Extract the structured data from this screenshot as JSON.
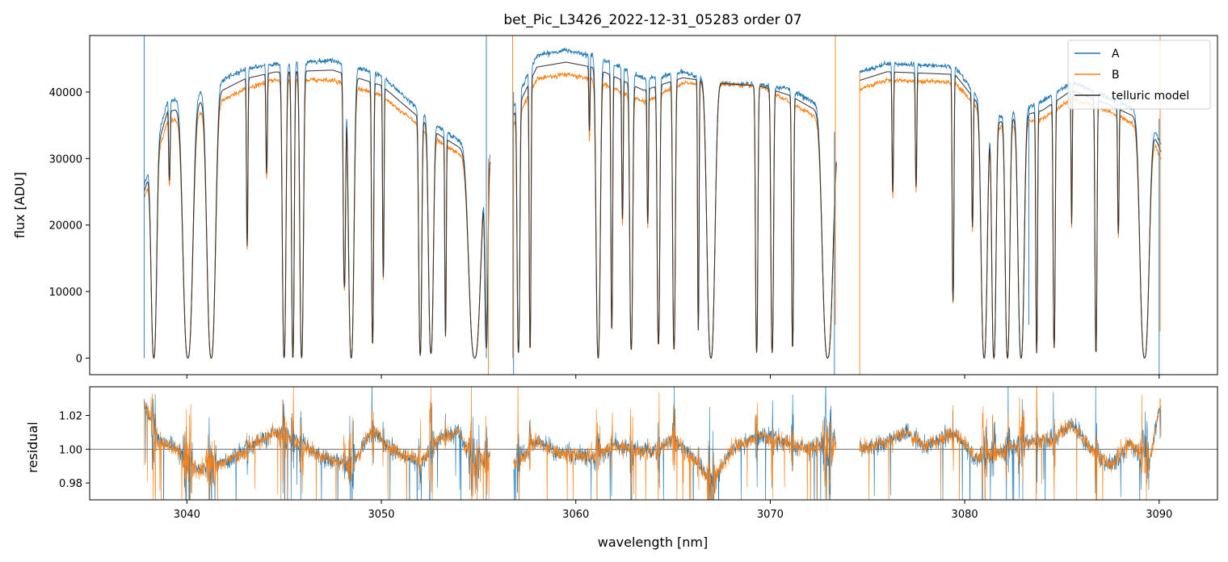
{
  "chart_data": [
    {
      "type": "line",
      "panel": "top",
      "title": "bet_Pic_L3426_2022-12-31_05283  order 07",
      "xlabel": "",
      "ylabel": "flux [ADU]",
      "xlim": [
        3035,
        3093
      ],
      "ylim": [
        -2500,
        48500
      ],
      "yticks": [
        0,
        10000,
        20000,
        30000,
        40000
      ],
      "ytick_labels": [
        "0",
        "10000",
        "20000",
        "30000",
        "40000"
      ],
      "xticks": [
        3040,
        3050,
        3060,
        3070,
        3080,
        3090
      ],
      "legend": {
        "location": "upper right",
        "entries": [
          "A",
          "B",
          "telluric model"
        ]
      },
      "segments": [
        [
          3037.8,
          3055.6
        ],
        [
          3056.8,
          3073.4
        ],
        [
          3074.6,
          3090.1
        ]
      ],
      "series": [
        {
          "name": "A",
          "color": "#1f77b4",
          "continuum": [
            [
              3037.8,
              26000
            ],
            [
              3039,
              38500
            ],
            [
              3040.5,
              39800
            ],
            [
              3043,
              43500
            ],
            [
              3044.5,
              44200
            ],
            [
              3047.5,
              44800
            ],
            [
              3050,
              42500
            ],
            [
              3053,
              34500
            ],
            [
              3055.5,
              30000
            ],
            [
              3056.8,
              38000
            ],
            [
              3058,
              45500
            ],
            [
              3059.5,
              46300
            ],
            [
              3061,
              45500
            ],
            [
              3063.5,
              42000
            ],
            [
              3065.5,
              43000
            ],
            [
              3067.5,
              41300
            ],
            [
              3069.5,
              41000
            ],
            [
              3071,
              40500
            ],
            [
              3072.5,
              38000
            ],
            [
              3073.4,
              34000
            ],
            [
              3074.6,
              43000
            ],
            [
              3076,
              44300
            ],
            [
              3079.5,
              43800
            ],
            [
              3081.5,
              36000
            ],
            [
              3084,
              38500
            ],
            [
              3085.5,
              41500
            ],
            [
              3087.5,
              39000
            ],
            [
              3089.5,
              36500
            ],
            [
              3090.1,
              32000
            ]
          ]
        },
        {
          "name": "B",
          "color": "#ff7f0e",
          "continuum": [
            [
              3037.8,
              24000
            ],
            [
              3039,
              35500
            ],
            [
              3040.5,
              36800
            ],
            [
              3043,
              40500
            ],
            [
              3044.5,
              41800
            ],
            [
              3047.5,
              41800
            ],
            [
              3050,
              39500
            ],
            [
              3053,
              32500
            ],
            [
              3055.5,
              28000
            ],
            [
              3056.8,
              35000
            ],
            [
              3058,
              42000
            ],
            [
              3059.5,
              42700
            ],
            [
              3061,
              41800
            ],
            [
              3063.5,
              38500
            ],
            [
              3065.5,
              41300
            ],
            [
              3067.5,
              41300
            ],
            [
              3069.5,
              40800
            ],
            [
              3071,
              38500
            ],
            [
              3072.5,
              36000
            ],
            [
              3073.4,
              33000
            ],
            [
              3074.6,
              40500
            ],
            [
              3076,
              41800
            ],
            [
              3079.5,
              41500
            ],
            [
              3081.5,
              34500
            ],
            [
              3084,
              36000
            ],
            [
              3085.5,
              39000
            ],
            [
              3087.5,
              37000
            ],
            [
              3089.5,
              34000
            ],
            [
              3090.1,
              30000
            ]
          ]
        },
        {
          "name": "telluric model",
          "color": "#2b2b2b"
        }
      ],
      "absorption_lines": [
        [
          3038.3,
          1.0,
          0.18
        ],
        [
          3039.1,
          0.28,
          0.05
        ],
        [
          3040.05,
          1.0,
          0.32
        ],
        [
          3041.25,
          1.0,
          0.28
        ],
        [
          3043.1,
          0.6,
          0.05
        ],
        [
          3044.1,
          0.35,
          0.05
        ],
        [
          3045.0,
          1.0,
          0.12
        ],
        [
          3045.45,
          1.0,
          0.09
        ],
        [
          3045.9,
          1.0,
          0.12
        ],
        [
          3048.1,
          0.75,
          0.08
        ],
        [
          3048.45,
          1.0,
          0.18
        ],
        [
          3049.55,
          0.95,
          0.07
        ],
        [
          3050.1,
          0.7,
          0.05
        ],
        [
          3052.0,
          0.99,
          0.1
        ],
        [
          3052.55,
          0.98,
          0.16
        ],
        [
          3053.3,
          0.9,
          0.05
        ],
        [
          3054.8,
          1.0,
          0.38
        ],
        [
          3055.4,
          0.95,
          0.1
        ],
        [
          3057.05,
          0.98,
          0.09
        ],
        [
          3057.65,
          0.97,
          0.06
        ],
        [
          3060.7,
          0.22,
          0.04
        ],
        [
          3061.15,
          1.0,
          0.14
        ],
        [
          3061.85,
          0.9,
          0.06
        ],
        [
          3062.4,
          0.5,
          0.05
        ],
        [
          3062.85,
          0.97,
          0.1
        ],
        [
          3063.7,
          0.5,
          0.05
        ],
        [
          3064.25,
          0.95,
          0.09
        ],
        [
          3065.05,
          0.97,
          0.09
        ],
        [
          3066.3,
          0.9,
          0.05
        ],
        [
          3066.95,
          1.0,
          0.26
        ],
        [
          3069.3,
          0.98,
          0.08
        ],
        [
          3070.1,
          0.98,
          0.09
        ],
        [
          3071.15,
          0.96,
          0.07
        ],
        [
          3072.95,
          1.0,
          0.34
        ],
        [
          3076.3,
          0.42,
          0.05
        ],
        [
          3077.5,
          0.4,
          0.05
        ],
        [
          3079.4,
          0.8,
          0.06
        ],
        [
          3080.4,
          0.5,
          0.05
        ],
        [
          3081.0,
          1.0,
          0.2
        ],
        [
          3081.5,
          1.0,
          0.14
        ],
        [
          3082.2,
          1.0,
          0.15
        ],
        [
          3082.9,
          1.0,
          0.2
        ],
        [
          3083.7,
          0.98,
          0.06
        ],
        [
          3084.6,
          0.96,
          0.07
        ],
        [
          3085.5,
          0.5,
          0.04
        ],
        [
          3086.75,
          0.98,
          0.07
        ],
        [
          3087.9,
          0.5,
          0.05
        ],
        [
          3089.25,
          1.0,
          0.3
        ]
      ],
      "spikes": [
        {
          "series": "A",
          "x": 3037.8,
          "y_low": 0,
          "y_high": 48500
        },
        {
          "series": "A",
          "x": 3055.4,
          "y_low": 0,
          "y_high": 48500
        },
        {
          "series": "B",
          "x": 3055.5,
          "y_low": -2500,
          "y_high": 30000
        },
        {
          "series": "B",
          "x": 3056.75,
          "y_low": 0,
          "y_high": 48500
        },
        {
          "series": "A",
          "x": 3056.8,
          "y_low": -2500,
          "y_high": 40000
        },
        {
          "series": "B",
          "x": 3073.35,
          "y_low": 5000,
          "y_high": 48500
        },
        {
          "series": "A",
          "x": 3073.3,
          "y_low": -2500,
          "y_high": 34000
        },
        {
          "series": "B",
          "x": 3074.6,
          "y_low": -2500,
          "y_high": 43000
        },
        {
          "series": "A",
          "x": 3083.3,
          "y_low": 5000,
          "y_high": 38000
        },
        {
          "series": "A",
          "x": 3090.0,
          "y_low": -2500,
          "y_high": 36000
        },
        {
          "series": "B",
          "x": 3090.05,
          "y_low": 4000,
          "y_high": 48500
        }
      ]
    },
    {
      "type": "line",
      "panel": "bottom",
      "xlabel": "wavelength [nm]",
      "ylabel": "residual",
      "xlim": [
        3035,
        3093
      ],
      "ylim": [
        0.97,
        1.037
      ],
      "yticks": [
        0.98,
        1.0,
        1.02
      ],
      "ytick_labels": [
        "0.98",
        "1.00",
        "1.02"
      ],
      "xticks": [
        3040,
        3050,
        3060,
        3070,
        3080,
        3090
      ],
      "xtick_labels": [
        "3040",
        "3050",
        "3060",
        "3070",
        "3080",
        "3090"
      ],
      "reference_line": 1.0,
      "segments": [
        [
          3037.8,
          3055.6
        ],
        [
          3056.8,
          3073.4
        ],
        [
          3074.6,
          3090.1
        ]
      ],
      "trend": [
        [
          3037.8,
          1.028
        ],
        [
          3038.5,
          1.005
        ],
        [
          3039.5,
          1.0
        ],
        [
          3040.5,
          0.988
        ],
        [
          3042,
          0.992
        ],
        [
          3043.5,
          1.003
        ],
        [
          3044.5,
          1.01
        ],
        [
          3045.5,
          1.005
        ],
        [
          3047,
          0.995
        ],
        [
          3048.5,
          0.99
        ],
        [
          3049.5,
          1.012
        ],
        [
          3050.5,
          1.0
        ],
        [
          3052,
          0.992
        ],
        [
          3053,
          1.006
        ],
        [
          3054,
          1.01
        ],
        [
          3054.8,
          0.99
        ],
        [
          3055.5,
          0.995
        ],
        [
          3056.8,
          0.99
        ],
        [
          3058,
          1.005
        ],
        [
          3059,
          0.998
        ],
        [
          3061,
          0.995
        ],
        [
          3062,
          1.002
        ],
        [
          3064,
          0.998
        ],
        [
          3065,
          1.006
        ],
        [
          3066,
          0.995
        ],
        [
          3067,
          0.98
        ],
        [
          3068,
          1.0
        ],
        [
          3069.5,
          1.008
        ],
        [
          3071,
          1.003
        ],
        [
          3072,
          1.0
        ],
        [
          3073.3,
          1.004
        ],
        [
          3074.6,
          1.0
        ],
        [
          3076,
          1.004
        ],
        [
          3077,
          1.01
        ],
        [
          3078,
          1.002
        ],
        [
          3079.5,
          1.01
        ],
        [
          3080.5,
          0.995
        ],
        [
          3082,
          0.998
        ],
        [
          3083,
          1.004
        ],
        [
          3084.5,
          1.005
        ],
        [
          3085.5,
          1.015
        ],
        [
          3086.5,
          1.0
        ],
        [
          3087.5,
          0.99
        ],
        [
          3088.5,
          1.003
        ],
        [
          3089.5,
          0.992
        ],
        [
          3090.1,
          1.03
        ]
      ],
      "series": [
        {
          "name": "A",
          "color": "#1f77b4"
        },
        {
          "name": "B",
          "color": "#ff7f0e"
        }
      ]
    }
  ]
}
